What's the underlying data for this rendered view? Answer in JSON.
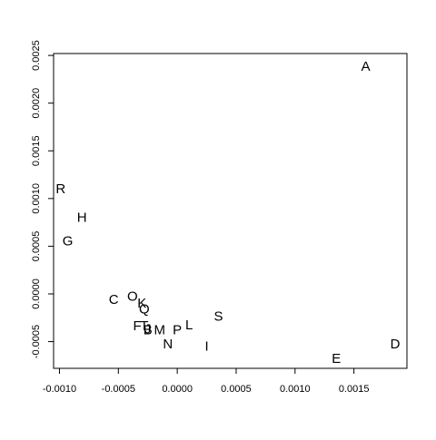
{
  "chart_data": {
    "type": "scatter",
    "title": "",
    "xlabel": "",
    "ylabel": "",
    "xlim": [
      -0.00105,
      0.00195
    ],
    "ylim": [
      -0.00078,
      0.00252
    ],
    "grid": false,
    "x_ticks": [
      -0.001,
      -0.0005,
      0.0,
      0.0005,
      0.001,
      0.0015
    ],
    "x_tick_labels": [
      "-0.0010",
      "-0.0005",
      "0.0000",
      "0.0005",
      "0.0010",
      "0.0015"
    ],
    "y_ticks": [
      -0.0005,
      0.0,
      0.0005,
      0.001,
      0.0015,
      0.002,
      0.0025
    ],
    "y_tick_labels": [
      "-0.0005",
      "0.0000",
      "0.0005",
      "0.0010",
      "0.0015",
      "0.0020",
      "0.0025"
    ],
    "points": [
      {
        "label": "A",
        "x": 0.0016,
        "y": 0.00238
      },
      {
        "label": "R",
        "x": -0.00099,
        "y": 0.0011
      },
      {
        "label": "H",
        "x": -0.00081,
        "y": 0.0008
      },
      {
        "label": "G",
        "x": -0.00093,
        "y": 0.00055
      },
      {
        "label": "C",
        "x": -0.00054,
        "y": -6e-05
      },
      {
        "label": "O",
        "x": -0.00038,
        "y": -3e-05
      },
      {
        "label": "K",
        "x": -0.0003,
        "y": -0.0001
      },
      {
        "label": "Q",
        "x": -0.00028,
        "y": -0.00016
      },
      {
        "label": "S",
        "x": 0.00035,
        "y": -0.00024
      },
      {
        "label": "F",
        "x": -0.00034,
        "y": -0.00034
      },
      {
        "label": "T",
        "x": -0.00028,
        "y": -0.00034
      },
      {
        "label": "J",
        "x": -0.00025,
        "y": -0.00037
      },
      {
        "label": "B",
        "x": -0.00025,
        "y": -0.00038
      },
      {
        "label": "M",
        "x": -0.00015,
        "y": -0.00038
      },
      {
        "label": "P",
        "x": 0.0,
        "y": -0.00038
      },
      {
        "label": "L",
        "x": 0.0001,
        "y": -0.00033
      },
      {
        "label": "N",
        "x": -8e-05,
        "y": -0.00053
      },
      {
        "label": "I",
        "x": 0.00025,
        "y": -0.00055
      },
      {
        "label": "E",
        "x": 0.00135,
        "y": -0.00068
      },
      {
        "label": "D",
        "x": 0.00185,
        "y": -0.00053
      }
    ]
  }
}
